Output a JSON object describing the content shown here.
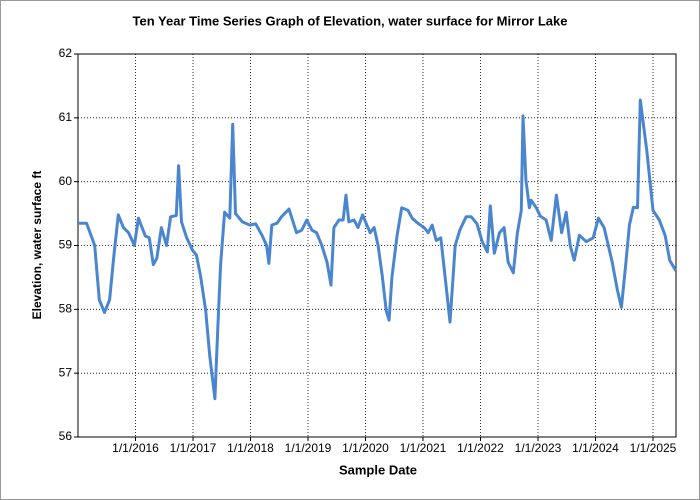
{
  "chart_data": {
    "type": "line",
    "title": "Ten Year Time Series Graph of Elevation, water surface for Mirror Lake",
    "x_label": "Sample Date",
    "y_label": "Elevation, water surface ft",
    "grid": true,
    "xlim": [
      2015.0,
      2025.4
    ],
    "ylim": [
      56,
      62
    ],
    "yticks": [
      56,
      57,
      58,
      59,
      60,
      61,
      62
    ],
    "xticks": [
      {
        "value": 2016,
        "label": "1/1/2016"
      },
      {
        "value": 2017,
        "label": "1/1/2017"
      },
      {
        "value": 2018,
        "label": "1/1/2018"
      },
      {
        "value": 2019,
        "label": "1/1/2019"
      },
      {
        "value": 2020,
        "label": "1/1/2020"
      },
      {
        "value": 2021,
        "label": "1/1/2021"
      },
      {
        "value": 2022,
        "label": "1/1/2022"
      },
      {
        "value": 2023,
        "label": "1/1/2023"
      },
      {
        "value": 2024,
        "label": "1/1/2024"
      },
      {
        "value": 2025,
        "label": "1/1/2025"
      }
    ],
    "series": [
      {
        "color": "#4a86d0",
        "x": [
          2015.0,
          2015.15,
          2015.29,
          2015.37,
          2015.46,
          2015.55,
          2015.62,
          2015.7,
          2015.79,
          2015.88,
          2015.98,
          2016.05,
          2016.17,
          2016.24,
          2016.31,
          2016.37,
          2016.45,
          2016.54,
          2016.61,
          2016.71,
          2016.75,
          2016.8,
          2016.89,
          2016.99,
          2017.06,
          2017.13,
          2017.22,
          2017.29,
          2017.38,
          2017.43,
          2017.48,
          2017.55,
          2017.64,
          2017.69,
          2017.74,
          2017.86,
          2017.99,
          2018.09,
          2018.2,
          2018.28,
          2018.32,
          2018.37,
          2018.46,
          2018.54,
          2018.67,
          2018.8,
          2018.89,
          2018.98,
          2019.07,
          2019.15,
          2019.24,
          2019.33,
          2019.4,
          2019.45,
          2019.54,
          2019.61,
          2019.66,
          2019.71,
          2019.8,
          2019.87,
          2019.95,
          2020.08,
          2020.15,
          2020.22,
          2020.29,
          2020.36,
          2020.41,
          2020.46,
          2020.55,
          2020.63,
          2020.74,
          2020.81,
          2020.91,
          2021.02,
          2021.09,
          2021.16,
          2021.23,
          2021.31,
          2021.4,
          2021.47,
          2021.56,
          2021.64,
          2021.75,
          2021.84,
          2021.94,
          2022.03,
          2022.12,
          2022.17,
          2022.24,
          2022.33,
          2022.41,
          2022.48,
          2022.57,
          2022.64,
          2022.71,
          2022.74,
          2022.79,
          2022.85,
          2022.88,
          2022.97,
          2023.04,
          2023.14,
          2023.23,
          2023.32,
          2023.41,
          2023.49,
          2023.56,
          2023.63,
          2023.72,
          2023.84,
          2023.96,
          2024.05,
          2024.15,
          2024.29,
          2024.38,
          2024.45,
          2024.52,
          2024.59,
          2024.66,
          2024.73,
          2024.78,
          2024.89,
          2025.0,
          2025.11,
          2025.21,
          2025.29,
          2025.4
        ],
        "values": [
          59.35,
          59.35,
          59.0,
          58.15,
          57.95,
          58.15,
          58.8,
          59.48,
          59.28,
          59.2,
          59.0,
          59.43,
          59.15,
          59.12,
          58.7,
          58.8,
          59.28,
          59.0,
          59.45,
          59.47,
          60.25,
          59.37,
          59.12,
          58.93,
          58.85,
          58.53,
          57.98,
          57.28,
          56.6,
          57.67,
          58.7,
          59.52,
          59.43,
          60.9,
          59.5,
          59.37,
          59.32,
          59.34,
          59.16,
          59.0,
          58.72,
          59.32,
          59.35,
          59.45,
          59.57,
          59.2,
          59.24,
          59.4,
          59.24,
          59.2,
          59.0,
          58.74,
          58.38,
          59.28,
          59.4,
          59.4,
          59.79,
          59.37,
          59.4,
          59.28,
          59.48,
          59.2,
          59.28,
          59.0,
          58.53,
          57.98,
          57.83,
          58.5,
          59.16,
          59.59,
          59.55,
          59.43,
          59.35,
          59.28,
          59.2,
          59.32,
          59.08,
          59.12,
          58.38,
          57.8,
          59.0,
          59.24,
          59.45,
          59.45,
          59.34,
          59.06,
          58.9,
          59.62,
          58.88,
          59.2,
          59.28,
          58.74,
          58.57,
          59.19,
          59.55,
          61.03,
          60.03,
          59.59,
          59.71,
          59.59,
          59.46,
          59.4,
          59.08,
          59.79,
          59.2,
          59.52,
          59.0,
          58.77,
          59.16,
          59.06,
          59.12,
          59.43,
          59.28,
          58.74,
          58.3,
          58.03,
          58.65,
          59.32,
          59.6,
          59.59,
          61.28,
          60.5,
          59.55,
          59.4,
          59.16,
          58.77,
          58.6
        ]
      }
    ]
  }
}
